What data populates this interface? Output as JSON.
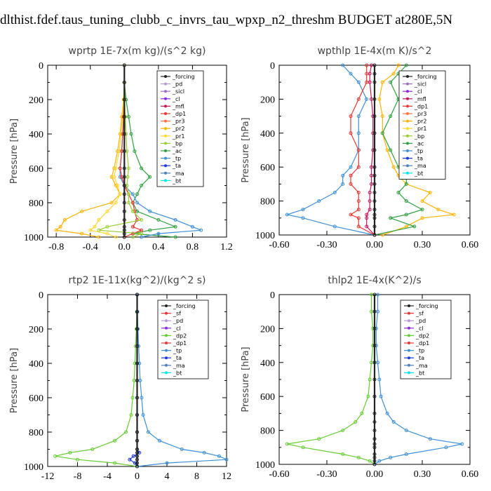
{
  "title": "dlthist.fdef.taus_tuning_clubb_c_invrs_tau_wpxp_n2_threshm  BUDGET at280E,5N",
  "colors": {
    "_forcing": "#222222",
    "_pd": "#b59ad6",
    "_sicl": "#a070c8",
    "_cl": "#8a2be2",
    "_mfl": "#c2185b",
    "_dp1": "#e53935",
    "_pr3": "#ff7043",
    "_pr2": "#ffb300",
    "_pr1": "#fdd835",
    "_bp": "#9acd32",
    "_ac": "#2e9e3e",
    "_tp": "#3d8fd6",
    "_ta": "#1a3adb",
    "_ma": "#4f7fbf",
    "_bt": "#00e5ee",
    "_sf": "#e53935",
    "_dp2": "#66cc33"
  },
  "chart_data": [
    {
      "type": "line",
      "title": "wprtp  1E-7x(m kg)/(s^2 kg)",
      "ylabel": "Pressure [hPa]",
      "xlim": [
        -0.9,
        1.2
      ],
      "ylim": [
        1000,
        0
      ],
      "xticks": [
        "-0.8",
        "-0.4",
        "0.0",
        "0.4",
        "0.8",
        "1.2"
      ],
      "xtick_values": [
        -0.8,
        -0.4,
        0.0,
        0.4,
        0.8,
        1.2
      ],
      "yticks": [
        "0",
        "200",
        "400",
        "600",
        "800",
        "1000"
      ],
      "legend": [
        "_forcing",
        "_pd",
        "_sicl",
        "_cl",
        "_mfl",
        "_dp1",
        "_pr3",
        "_pr2",
        "_pr1",
        "_bp",
        "_ac",
        "_tp",
        "_ta",
        "_ma",
        "_bt"
      ],
      "pressure": [
        0,
        100,
        200,
        300,
        400,
        500,
        600,
        650,
        700,
        750,
        800,
        850,
        900,
        940,
        960,
        980,
        1000
      ],
      "series": [
        {
          "name": "_ac",
          "values": [
            0,
            0,
            0.02,
            0.05,
            0.08,
            0.12,
            0.2,
            0.3,
            0.2,
            0.15,
            0.1,
            0.15,
            0.4,
            0.6,
            0.3,
            0.1,
            0.6
          ]
        },
        {
          "name": "_tp",
          "values": [
            0,
            0,
            0,
            0,
            -0.02,
            -0.03,
            -0.05,
            -0.05,
            0,
            0.1,
            0.15,
            0.3,
            0.6,
            0.8,
            0.9,
            0.4,
            0.2
          ]
        },
        {
          "name": "_pr2",
          "values": [
            0,
            0,
            -0.01,
            -0.03,
            -0.05,
            -0.08,
            -0.12,
            -0.15,
            -0.1,
            -0.05,
            -0.15,
            -0.5,
            -0.7,
            -0.75,
            -0.8,
            -0.5,
            -0.3
          ]
        },
        {
          "name": "_pr1",
          "values": [
            0,
            0,
            -0.01,
            -0.02,
            -0.04,
            -0.06,
            -0.1,
            -0.12,
            -0.08,
            -0.05,
            -0.1,
            -0.2,
            -0.3,
            -0.35,
            -0.4,
            -0.2,
            -0.1
          ]
        },
        {
          "name": "_dp1",
          "values": [
            0,
            0,
            0,
            -0.01,
            -0.02,
            -0.03,
            -0.05,
            -0.03,
            0,
            0.05,
            0.1,
            0.12,
            0.15,
            0.1,
            0.2,
            0.1,
            0.0
          ]
        },
        {
          "name": "_bp",
          "values": [
            0,
            0,
            0,
            0.01,
            0.02,
            0.03,
            0.05,
            0.04,
            0.03,
            0.05,
            0.05,
            0.1,
            0.2,
            -0.2,
            -0.3,
            0.2,
            0.1
          ]
        },
        {
          "name": "_forcing",
          "values": [
            0,
            0,
            0,
            0,
            0,
            0,
            0,
            0,
            0,
            0,
            0,
            0,
            0,
            0,
            0,
            0,
            0
          ]
        }
      ]
    },
    {
      "type": "line",
      "title": "wpthlp  1E-4x(m K)/s^2",
      "ylabel": "Pressure [hPa]",
      "xlim": [
        -0.6,
        0.6
      ],
      "ylim": [
        1000,
        0
      ],
      "xticks": [
        "-0.60",
        "-0.30",
        "0.00",
        "0.30",
        "0.60"
      ],
      "xtick_values": [
        -0.6,
        -0.3,
        0.0,
        0.3,
        0.6
      ],
      "yticks": [
        "0",
        "200",
        "400",
        "600",
        "800",
        "1000"
      ],
      "legend": [
        "_forcing",
        "_sicl",
        "_cl",
        "_mfl",
        "_dp1",
        "_pr3",
        "_pr2",
        "_pr1",
        "_bp",
        "_ac",
        "_tp",
        "_ta",
        "_ma",
        "_bt"
      ],
      "pressure": [
        0,
        50,
        100,
        200,
        300,
        400,
        500,
        600,
        650,
        700,
        750,
        800,
        850,
        880,
        900,
        950,
        1000
      ],
      "series": [
        {
          "name": "_pr2",
          "values": [
            0.15,
            0.12,
            0.05,
            0.03,
            0.05,
            0.05,
            0.08,
            0.12,
            0.15,
            0.2,
            0.35,
            0.3,
            0.4,
            0.5,
            0.3,
            0.2,
            0.05
          ]
        },
        {
          "name": "_ac",
          "values": [
            0.2,
            0.15,
            0.1,
            0.15,
            0.1,
            0.05,
            0.1,
            0.15,
            0.2,
            0.2,
            0.15,
            0.2,
            0.3,
            0.2,
            0.1,
            0.25,
            0.0
          ]
        },
        {
          "name": "_tp",
          "values": [
            -0.2,
            -0.15,
            -0.1,
            -0.05,
            -0.1,
            -0.1,
            -0.1,
            -0.15,
            -0.2,
            -0.2,
            -0.25,
            -0.35,
            -0.45,
            -0.55,
            -0.45,
            -0.25,
            0.0
          ]
        },
        {
          "name": "_dp1",
          "values": [
            -0.05,
            -0.05,
            -0.05,
            -0.1,
            -0.15,
            -0.15,
            -0.1,
            -0.1,
            -0.15,
            -0.15,
            -0.1,
            -0.1,
            -0.1,
            -0.15,
            -0.1,
            -0.1,
            0.0
          ]
        },
        {
          "name": "_mfl",
          "values": [
            -0.02,
            -0.03,
            -0.03,
            -0.02,
            -0.01,
            -0.01,
            -0.01,
            -0.02,
            -0.02,
            -0.02,
            -0.03,
            -0.03,
            -0.03,
            -0.05,
            -0.05,
            -0.05,
            0.0
          ]
        },
        {
          "name": "_forcing",
          "values": [
            0,
            0,
            0,
            0,
            0,
            0,
            0,
            0,
            0,
            0,
            0,
            0,
            0,
            0,
            0,
            0,
            0
          ]
        }
      ]
    },
    {
      "type": "line",
      "title": "rtp2  1E-11x(kg^2)/(kg^2 s)",
      "ylabel": "Pressure [hPa]",
      "xlim": [
        -12,
        12
      ],
      "ylim": [
        1000,
        0
      ],
      "xticks": [
        "-12",
        "-8",
        "-4",
        "0",
        "4",
        "8",
        "12"
      ],
      "xtick_values": [
        -12,
        -8,
        -4,
        0,
        4,
        8,
        12
      ],
      "yticks": [
        "0",
        "200",
        "400",
        "600",
        "800",
        "1000"
      ],
      "legend": [
        "_forcing",
        "_sf",
        "_pd",
        "_cl",
        "_dp2",
        "_dp1",
        "_tp",
        "_ta",
        "_ma",
        "_bt"
      ],
      "pressure": [
        0,
        100,
        200,
        300,
        400,
        500,
        600,
        700,
        800,
        850,
        900,
        920,
        940,
        960,
        980,
        1000
      ],
      "series": [
        {
          "name": "_dp2",
          "values": [
            0,
            -0.05,
            -0.1,
            -0.2,
            -0.3,
            -0.4,
            -0.6,
            -0.8,
            -1.5,
            -3,
            -6,
            -9,
            -11,
            -8,
            -3,
            0
          ]
        },
        {
          "name": "_tp",
          "values": [
            0,
            0.05,
            0.1,
            0.2,
            0.3,
            0.4,
            0.6,
            0.8,
            1.5,
            3,
            6,
            9,
            11,
            12,
            4,
            0
          ]
        },
        {
          "name": "_ta",
          "values": [
            0,
            0,
            0,
            0,
            0,
            0,
            0,
            0,
            0,
            0,
            0,
            0.3,
            -0.5,
            -1,
            -0.3,
            0
          ]
        },
        {
          "name": "_forcing",
          "values": [
            0,
            0,
            0,
            0,
            0,
            0,
            0,
            0,
            0,
            0,
            0,
            0,
            0,
            0,
            0,
            0
          ]
        }
      ]
    },
    {
      "type": "line",
      "title": "thlp2  1E-4x(K^2)/s",
      "ylabel": "Pressure [hPa]",
      "xlim": [
        -0.6,
        0.6
      ],
      "ylim": [
        1000,
        0
      ],
      "xticks": [
        "-0.60",
        "-0.30",
        "0.00",
        "0.30",
        "0.60"
      ],
      "xtick_values": [
        -0.6,
        -0.3,
        0.0,
        0.3,
        0.6
      ],
      "yticks": [
        "0",
        "200",
        "400",
        "600",
        "800",
        "1000"
      ],
      "legend": [
        "_forcing",
        "_sf",
        "_pd",
        "_cl",
        "_dp2",
        "_dp1",
        "_tp",
        "_ta",
        "_ma",
        "_bt"
      ],
      "pressure": [
        0,
        100,
        200,
        300,
        400,
        500,
        600,
        700,
        750,
        800,
        850,
        880,
        900,
        940,
        960,
        980,
        1000
      ],
      "series": [
        {
          "name": "_dp2",
          "values": [
            -0.02,
            -0.02,
            -0.01,
            -0.01,
            -0.02,
            -0.03,
            -0.04,
            -0.08,
            -0.12,
            -0.2,
            -0.35,
            -0.55,
            -0.45,
            -0.2,
            -0.1,
            -0.03,
            0
          ]
        },
        {
          "name": "_tp",
          "values": [
            0.02,
            0.02,
            0.01,
            0.01,
            0.02,
            0.03,
            0.04,
            0.08,
            0.12,
            0.2,
            0.35,
            0.55,
            0.45,
            0.2,
            0.1,
            0.03,
            0
          ]
        },
        {
          "name": "_forcing",
          "values": [
            0,
            0,
            0,
            0,
            0,
            0,
            0,
            0,
            0,
            0,
            0,
            0,
            0,
            0,
            0,
            0,
            0
          ]
        }
      ]
    }
  ]
}
